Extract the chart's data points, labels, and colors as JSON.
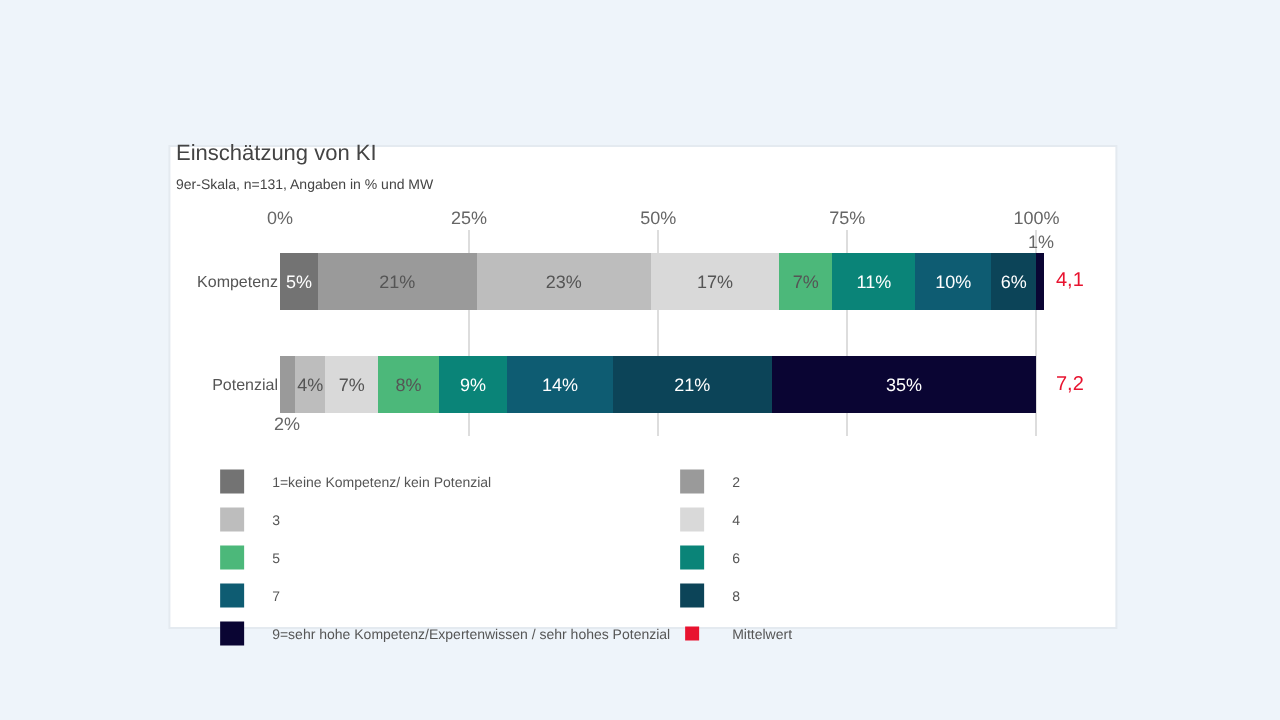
{
  "chart_data": {
    "type": "bar",
    "orientation": "horizontal",
    "stacked": true,
    "title": "Einschätzung von KI",
    "subtitle": "9er-Skala, n=131, Angaben in % und MW",
    "categories": [
      "Kompetenz",
      "Potenzial"
    ],
    "series": [
      {
        "name": "1=keine Kompetenz/ kein Potenzial",
        "color": "#737373",
        "values": [
          5,
          null
        ],
        "value_labels": [
          "5%",
          null
        ]
      },
      {
        "name": "2",
        "color": "#9a9a9a",
        "values": [
          21,
          2
        ],
        "value_labels": [
          "21%",
          "2%"
        ]
      },
      {
        "name": "3",
        "color": "#bdbdbd",
        "values": [
          23,
          4
        ],
        "value_labels": [
          "23%",
          "4%"
        ]
      },
      {
        "name": "4",
        "color": "#d9d9d9",
        "values": [
          17,
          7
        ],
        "value_labels": [
          "17%",
          "7%"
        ]
      },
      {
        "name": "5",
        "color": "#4cb87a",
        "values": [
          7,
          8
        ],
        "value_labels": [
          "7%",
          "8%"
        ]
      },
      {
        "name": "6",
        "color": "#0a8478",
        "values": [
          11,
          9
        ],
        "value_labels": [
          "11%",
          "9%"
        ]
      },
      {
        "name": "7",
        "color": "#0e5c72",
        "values": [
          10,
          14
        ],
        "value_labels": [
          "10%",
          "14%"
        ]
      },
      {
        "name": "8",
        "color": "#0c4458",
        "values": [
          6,
          21
        ],
        "value_labels": [
          "6%",
          "21%"
        ]
      },
      {
        "name": "9=sehr hohe Kompetenz/Expertenwissen / sehr hohes Potenzial",
        "color": "#0a0533",
        "values": [
          1,
          35
        ],
        "value_labels": [
          "1%",
          "35%"
        ]
      },
      {
        "name": "Mittelwert",
        "type": "scatter",
        "color": "#e8132f",
        "values": [
          null,
          null
        ]
      }
    ],
    "annotations": [
      "4,1",
      "7,2"
    ],
    "xlim": [
      0,
      101
    ],
    "xticks": [
      {
        "value": 0,
        "label": "0%"
      },
      {
        "value": 25,
        "label": "25%"
      },
      {
        "value": 50,
        "label": "50%"
      },
      {
        "value": 75,
        "label": "75%"
      },
      {
        "value": 100,
        "label": "100%"
      }
    ],
    "grid": "x",
    "legend": "bottom"
  }
}
